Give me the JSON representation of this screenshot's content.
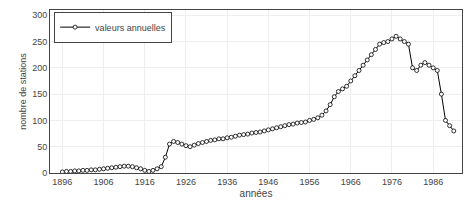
{
  "chart_data": {
    "type": "line",
    "xlabel": "années",
    "ylabel": "nombre de stations",
    "x": [
      1896,
      1897,
      1898,
      1899,
      1900,
      1901,
      1902,
      1903,
      1904,
      1905,
      1906,
      1907,
      1908,
      1909,
      1910,
      1911,
      1912,
      1913,
      1914,
      1915,
      1916,
      1917,
      1918,
      1919,
      1920,
      1921,
      1922,
      1923,
      1924,
      1925,
      1926,
      1927,
      1928,
      1929,
      1930,
      1931,
      1932,
      1933,
      1934,
      1935,
      1936,
      1937,
      1938,
      1939,
      1940,
      1941,
      1942,
      1943,
      1944,
      1945,
      1946,
      1947,
      1948,
      1949,
      1950,
      1951,
      1952,
      1953,
      1954,
      1955,
      1956,
      1957,
      1958,
      1959,
      1960,
      1961,
      1962,
      1963,
      1964,
      1965,
      1966,
      1967,
      1968,
      1969,
      1970,
      1971,
      1972,
      1973,
      1974,
      1975,
      1976,
      1977,
      1978,
      1979,
      1980,
      1981,
      1982,
      1983,
      1984,
      1985,
      1986,
      1987,
      1988,
      1989,
      1990,
      1991
    ],
    "series": [
      {
        "name": "valeurs annuelles",
        "color": "#000000",
        "marker": "circle",
        "values": [
          2,
          3,
          3,
          4,
          4,
          5,
          5,
          6,
          6,
          7,
          8,
          9,
          10,
          11,
          12,
          13,
          13,
          12,
          10,
          8,
          5,
          3,
          5,
          8,
          12,
          30,
          55,
          60,
          58,
          55,
          52,
          50,
          53,
          56,
          58,
          60,
          62,
          63,
          65,
          65,
          67,
          68,
          70,
          72,
          73,
          74,
          76,
          77,
          78,
          80,
          82,
          84,
          86,
          88,
          90,
          92,
          93,
          95,
          96,
          97,
          100,
          102,
          105,
          110,
          118,
          130,
          145,
          155,
          160,
          165,
          175,
          185,
          195,
          205,
          215,
          225,
          235,
          245,
          248,
          250,
          255,
          260,
          255,
          250,
          245,
          200,
          195,
          205,
          210,
          205,
          200,
          195,
          150,
          100,
          90,
          80
        ]
      }
    ],
    "xlim": [
      1893,
      1993
    ],
    "ylim": [
      0,
      310
    ],
    "xticks": [
      1896,
      1906,
      1916,
      1926,
      1936,
      1946,
      1956,
      1966,
      1976,
      1986
    ],
    "yticks": [
      0,
      50,
      100,
      150,
      200,
      250,
      300
    ],
    "grid": true,
    "legend": "upper left"
  }
}
